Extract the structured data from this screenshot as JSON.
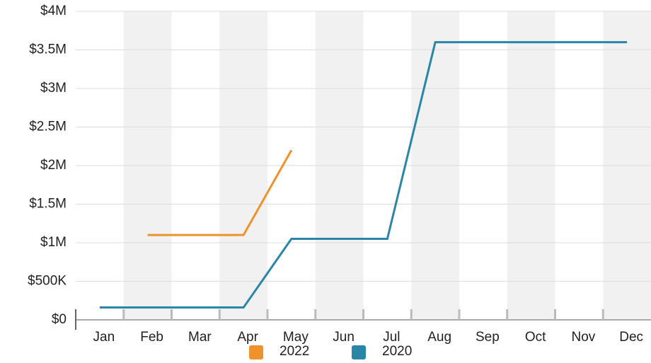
{
  "chart_data": {
    "type": "line",
    "categories": [
      "Jan",
      "Feb",
      "Mar",
      "Apr",
      "May",
      "Jun",
      "Jul",
      "Aug",
      "Sep",
      "Oct",
      "Nov",
      "Dec"
    ],
    "series": [
      {
        "name": "2022",
        "color": "#f0922b",
        "values": [
          null,
          1.1,
          1.1,
          1.1,
          2.2,
          null,
          null,
          null,
          null,
          null,
          null,
          null
        ]
      },
      {
        "name": "2020",
        "color": "#2a86a6",
        "values": [
          0.16,
          0.16,
          0.16,
          0.16,
          1.05,
          1.05,
          1.05,
          3.6,
          3.6,
          3.6,
          3.6,
          3.6
        ]
      }
    ],
    "ylim": [
      0,
      4
    ],
    "yticks": [
      {
        "value": 0,
        "label": "$0"
      },
      {
        "value": 0.5,
        "label": "$500K"
      },
      {
        "value": 1,
        "label": "$1M"
      },
      {
        "value": 1.5,
        "label": "$1.5M"
      },
      {
        "value": 2,
        "label": "$2M"
      },
      {
        "value": 2.5,
        "label": "$2.5M"
      },
      {
        "value": 3,
        "label": "$3M"
      },
      {
        "value": 3.5,
        "label": "$3.5M"
      },
      {
        "value": 4,
        "label": "$4M"
      }
    ],
    "grid": true,
    "legend": "bottom"
  }
}
